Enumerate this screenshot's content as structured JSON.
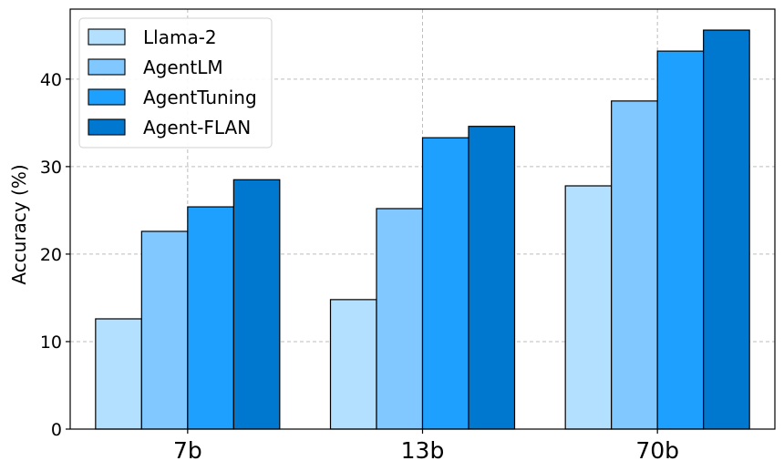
{
  "chart_data": {
    "type": "bar",
    "title": "",
    "xlabel": "",
    "ylabel": "Accuracy (%)",
    "categories": [
      "7b",
      "13b",
      "70b"
    ],
    "series": [
      {
        "name": "Llama-2",
        "color": "#b3e0ff",
        "values": [
          12.6,
          14.8,
          27.8
        ]
      },
      {
        "name": "AgentLM",
        "color": "#80c8ff",
        "values": [
          22.6,
          25.2,
          37.5
        ]
      },
      {
        "name": "AgentTuning",
        "color": "#1ea0ff",
        "values": [
          25.4,
          33.3,
          43.2
        ]
      },
      {
        "name": "Agent-FLAN",
        "color": "#0078d0",
        "values": [
          28.5,
          34.6,
          45.6
        ]
      }
    ],
    "ylim": [
      0,
      48
    ],
    "yticks": [
      0,
      10,
      20,
      30,
      40
    ],
    "grid": true,
    "legend_position": "top-left"
  }
}
